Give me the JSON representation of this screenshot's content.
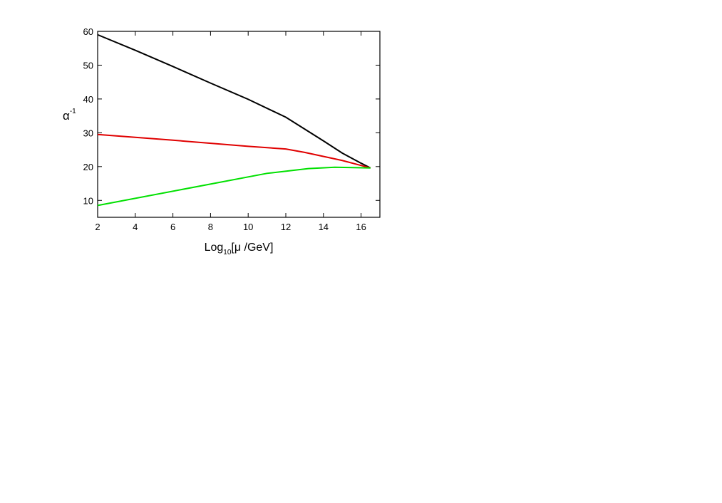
{
  "chart_data": {
    "type": "line",
    "xlabel": {
      "main": "Log",
      "sub": "10",
      "rest": "[μ /GeV]"
    },
    "ylabel": {
      "main": "α",
      "sup": "-1"
    },
    "xlim": [
      2,
      17
    ],
    "xticks": [
      2,
      4,
      6,
      8,
      10,
      12,
      14,
      16
    ],
    "ylim": [
      5,
      60
    ],
    "yticks": [
      10,
      20,
      30,
      40,
      50,
      60
    ],
    "series": [
      {
        "color": "#000000",
        "x": [
          2,
          4,
          6,
          8,
          10,
          12,
          13,
          14,
          15,
          16,
          16.5
        ],
        "values": [
          59,
          54.4,
          49.6,
          44.7,
          39.9,
          34.6,
          31.1,
          27.6,
          24,
          21,
          19.6
        ]
      },
      {
        "color": "#e00000",
        "x": [
          2,
          6,
          10,
          12,
          13,
          15,
          16.5
        ],
        "values": [
          29.5,
          27.8,
          26,
          25.2,
          24.2,
          21.8,
          19.6
        ]
      },
      {
        "color": "#00e000",
        "x": [
          2,
          11,
          13.2,
          14.6,
          16.5
        ],
        "values": [
          8.5,
          18,
          19.4,
          19.8,
          19.6
        ]
      }
    ]
  }
}
